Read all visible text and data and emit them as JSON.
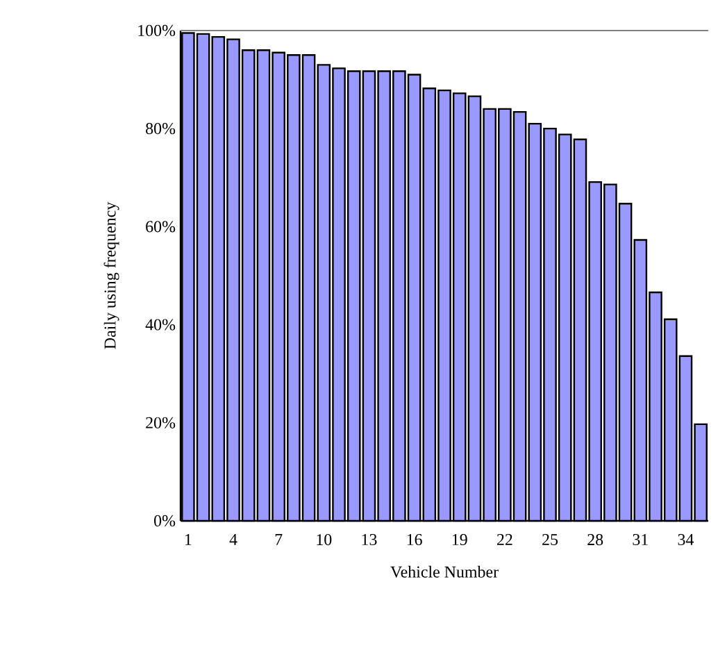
{
  "chart_data": {
    "type": "bar",
    "xlabel": "Vehicle Number",
    "ylabel": "Daily using frequency",
    "categories": [
      "1",
      null,
      null,
      "4",
      null,
      null,
      "7",
      null,
      null,
      "10",
      null,
      null,
      "13",
      null,
      null,
      "16",
      null,
      null,
      "19",
      null,
      null,
      "22",
      null,
      null,
      "25",
      null,
      null,
      "28",
      null,
      null,
      "31",
      null,
      null,
      "34",
      null
    ],
    "values": [
      99.5,
      99.3,
      98.7,
      98.2,
      96,
      96,
      95.5,
      95,
      95,
      93,
      92.3,
      91.7,
      91.7,
      91.7,
      91.7,
      91,
      88.2,
      87.8,
      87.2,
      86.6,
      84,
      84,
      83.4,
      81,
      80,
      78.8,
      77.8,
      69.1,
      68.6,
      64.7,
      57.3,
      46.6,
      41.1,
      33.6,
      19.7
    ],
    "color": "#9999ff",
    "ylim": [
      0,
      100
    ],
    "yticks": [
      {
        "value": 0,
        "label": "0%"
      },
      {
        "value": 20,
        "label": "20%"
      },
      {
        "value": 40,
        "label": "40%"
      },
      {
        "value": 60,
        "label": "60%"
      },
      {
        "value": 80,
        "label": "80%"
      },
      {
        "value": 100,
        "label": "100%"
      }
    ]
  }
}
